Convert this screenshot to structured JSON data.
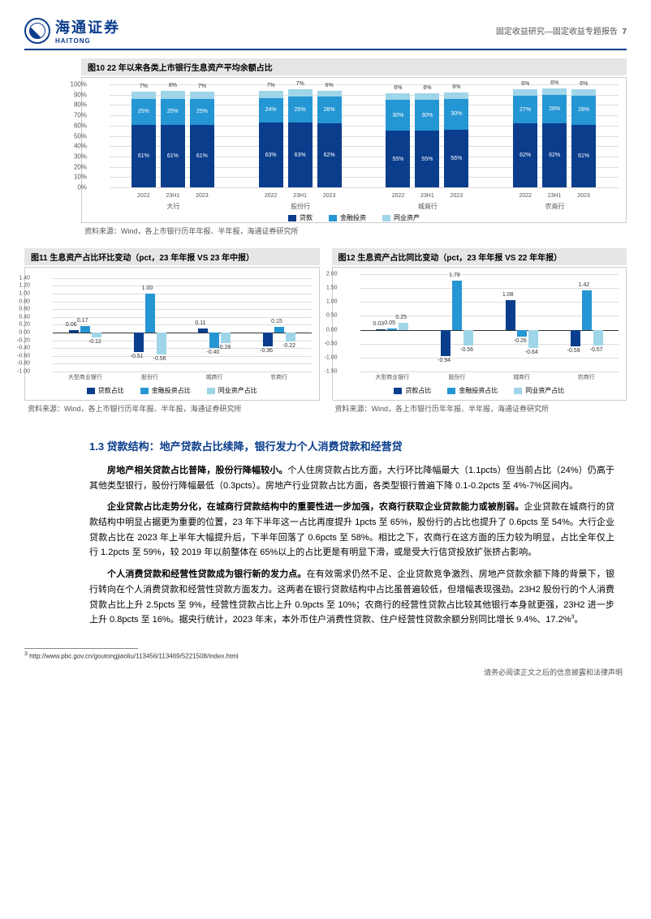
{
  "header": {
    "company_cn": "海通证券",
    "company_en": "HAITONG",
    "doc_line": "固定收益研究—固定收益专题报告",
    "page_num": "7"
  },
  "chart10": {
    "title": "图10 22 年以来各类上市银行生息资产平均余额占比",
    "type": "stacked-bar",
    "ylim": [
      0,
      100
    ],
    "ytick_step": 10,
    "yticks": [
      "0%",
      "10%",
      "20%",
      "30%",
      "40%",
      "50%",
      "60%",
      "70%",
      "80%",
      "90%",
      "100%"
    ],
    "groups": [
      "大行",
      "股份行",
      "城商行",
      "农商行"
    ],
    "periods": [
      "2022",
      "23H1",
      "2023"
    ],
    "colors": {
      "loan": "#0a3d8c",
      "invest": "#2596d4",
      "interbank": "#9fd5e8",
      "rest": "rgba(0,0,0,0)"
    },
    "data": [
      [
        {
          "loan": 61,
          "invest": 25,
          "interbank": 7
        },
        {
          "loan": 61,
          "invest": 25,
          "interbank": 8
        },
        {
          "loan": 61,
          "invest": 25,
          "interbank": 7
        }
      ],
      [
        {
          "loan": 63,
          "invest": 24,
          "interbank": 7
        },
        {
          "loan": 63,
          "invest": 25,
          "interbank": 7
        },
        {
          "loan": 62,
          "invest": 26,
          "interbank": 6
        }
      ],
      [
        {
          "loan": 55,
          "invest": 30,
          "interbank": 6
        },
        {
          "loan": 55,
          "invest": 30,
          "interbank": 6
        },
        {
          "loan": 56,
          "invest": 30,
          "interbank": 6
        }
      ],
      [
        {
          "loan": 62,
          "invest": 27,
          "interbank": 6
        },
        {
          "loan": 62,
          "invest": 28,
          "interbank": 6
        },
        {
          "loan": 61,
          "invest": 28,
          "interbank": 6
        }
      ]
    ],
    "legend": [
      "贷款",
      "金融投资",
      "同业资产"
    ],
    "source": "资料来源：Wind，各上市银行历年年报、半年报，海通证券研究所"
  },
  "chart11": {
    "title": "图11 生息资产占比环比变动（pct，23 年年报 VS 23 年中报）",
    "type": "grouped-bar",
    "ylim": [
      -1.0,
      1.5
    ],
    "yticks": [
      "-1.00",
      "-0.80",
      "-0.60",
      "-0.40",
      "-0.20",
      "0.00",
      "0.20",
      "0.40",
      "0.60",
      "0.80",
      "1.00",
      "1.20",
      "1.40"
    ],
    "ytick_vals": [
      -1.0,
      -0.8,
      -0.6,
      -0.4,
      -0.2,
      0,
      0.2,
      0.4,
      0.6,
      0.8,
      1.0,
      1.2,
      1.4
    ],
    "categories": [
      "大型商业银行",
      "股份行",
      "城商行",
      "农商行"
    ],
    "series": [
      "贷款占比",
      "金融投资占比",
      "同业资产占比"
    ],
    "colors": [
      "#0a3d8c",
      "#2596d4",
      "#9fd5e8"
    ],
    "data": [
      [
        0.06,
        0.17,
        -0.12
      ],
      [
        -0.51,
        1.0,
        -0.56
      ],
      [
        0.11,
        -0.4,
        -0.28
      ],
      [
        -0.36,
        0.15,
        -0.22
      ]
    ],
    "source": "资料来源：Wind，各上市银行历年年报、半年报，海通证券研究所"
  },
  "chart12": {
    "title": "图12 生息资产占比同比变动（pct，23 年年报 VS 22 年年报）",
    "type": "grouped-bar",
    "ylim": [
      -1.5,
      2.0
    ],
    "yticks": [
      "-1.50",
      "-1.00",
      "-0.50",
      "0.00",
      "0.50",
      "1.00",
      "1.50",
      "2.00"
    ],
    "ytick_vals": [
      -1.5,
      -1.0,
      -0.5,
      0,
      0.5,
      1.0,
      1.5,
      2.0
    ],
    "categories": [
      "大型商业银行",
      "股份行",
      "城商行",
      "农商行"
    ],
    "series": [
      "贷款占比",
      "金融投资占比",
      "同业资产占比"
    ],
    "colors": [
      "#0a3d8c",
      "#2596d4",
      "#9fd5e8"
    ],
    "data": [
      [
        0.03,
        0.05,
        0.25
      ],
      [
        -0.94,
        1.78,
        -0.56
      ],
      [
        1.08,
        -0.26,
        -0.64
      ],
      [
        -0.59,
        1.42,
        -0.57
      ]
    ],
    "source": "资料来源：Wind，各上市银行历年年报、半年报，海通证券研究所"
  },
  "section": {
    "title": "1.3 贷款结构：地产贷款占比续降，银行发力个人消费贷款和经营贷",
    "p1_bold": "房地产相关贷款占比普降，股份行降幅较小。",
    "p1": "个人住房贷款占比方面，大行环比降幅最大（1.1pcts）但当前占比（24%）仍高于其他类型银行，股份行降幅最低（0.3pcts）。房地产行业贷款占比方面，各类型银行普遍下降 0.1-0.2pcts 至 4%-7%区间内。",
    "p2_bold": "企业贷款占比走势分化，在城商行贷款结构中的重要性进一步加强，农商行获取企业贷款能力或被削弱。",
    "p2": "企业贷款在城商行的贷款结构中明显占据更为重要的位置，23 年下半年这一占比再度提升 1pcts 至 65%，股份行的占比也提升了 0.6pcts 至 54%。大行企业贷款占比在 2023 年上半年大幅提升后，下半年回落了 0.6pcts 至 58%。相比之下，农商行在这方面的压力较为明显，占比全年仅上行 1.2pcts 至 59%，较 2019 年以前整体在 65%以上的占比更是有明显下滑，或是受大行信贷投放扩张挤占影响。",
    "p3_bold": "个人消费贷款和经营性贷款成为银行新的发力点。",
    "p3": "在有效需求仍然不足、企业贷款竞争激烈、房地产贷款余额下降的背景下，银行转向在个人消费贷款和经营性贷款方面发力。这两者在银行贷款结构中占比虽普遍较低，但增幅表现强劲。23H2 股份行的个人消费贷款占比上升 2.5pcts 至 9%，经营性贷款占比上升 0.9pcts 至 10%；农商行的经营性贷款占比较其他银行本身就更强，23H2 进一步上升 0.8pcts 至 16%。据央行统计，2023 年末，本外币住户消费性贷款、住户经营性贷款余额分别同比增长 9.4%、17.2%",
    "p3_note": "3",
    "p3_end": "。"
  },
  "footnote": {
    "num": "3",
    "text": "http://www.pbc.gov.cn/goutongjiaoliu/113456/113469/5221508/index.html"
  },
  "footer": "请务必阅读正文之后的信息披露和法律声明"
}
